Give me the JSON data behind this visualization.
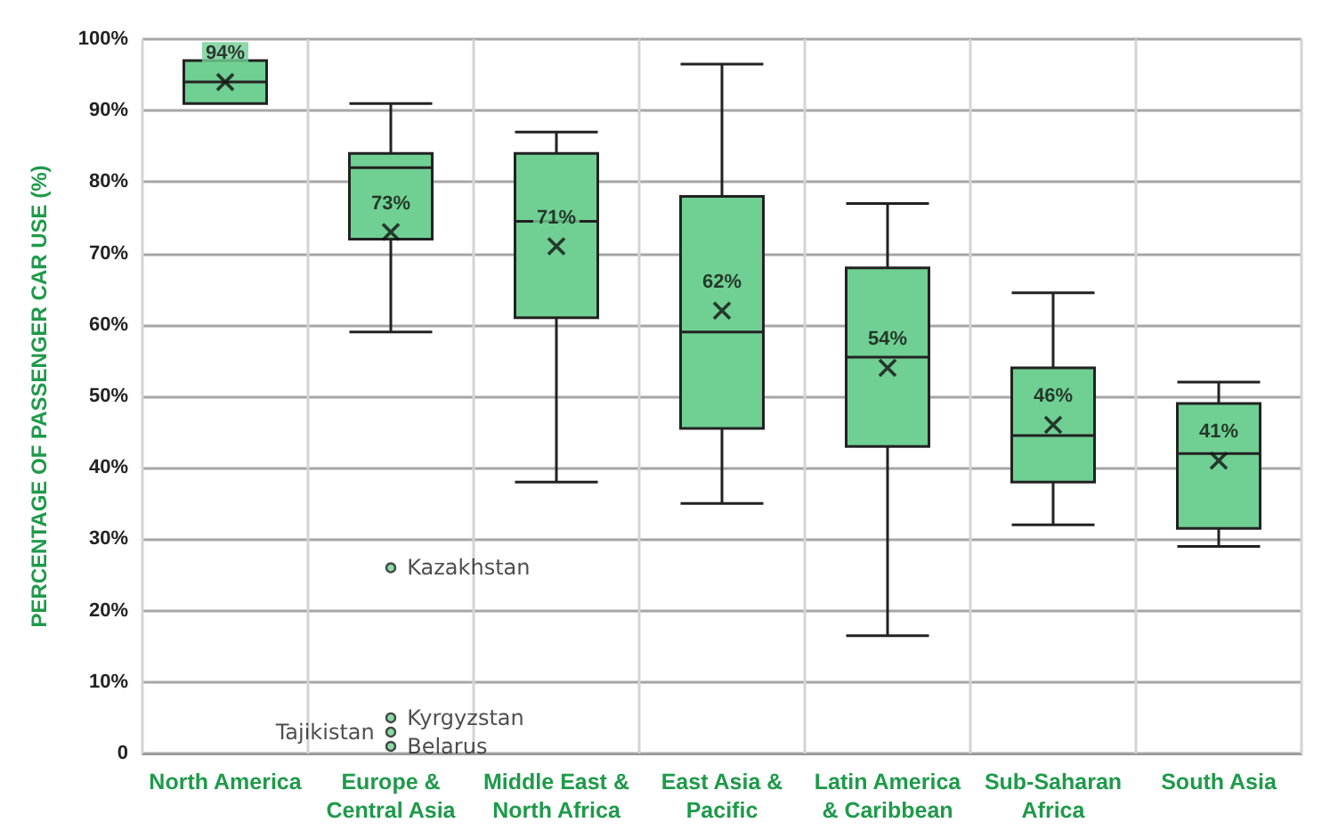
{
  "chart_data": {
    "type": "box",
    "ylabel": "PERCENTAGE OF PASSENGER CAR USE (%)",
    "categories": [
      "North America",
      "Europe &\nCentral Asia",
      "Middle East &\nNorth Africa",
      "East Asia &\nPacific",
      "Latin America\n& Caribbean",
      "Sub-Saharan\nAfrica",
      "South Asia"
    ],
    "series": [
      {
        "color": "#70cf93",
        "boxes": [
          {
            "low": 91,
            "q1": 91,
            "median": 94,
            "q3": 97,
            "high": 97,
            "mean": 94
          },
          {
            "low": 59,
            "q1": 72,
            "median": 82,
            "q3": 84,
            "high": 91,
            "mean": 73,
            "outliers": [
              26,
              5,
              3,
              1
            ]
          },
          {
            "low": 38,
            "q1": 61,
            "median": 74.5,
            "q3": 84,
            "high": 87,
            "mean": 71
          },
          {
            "low": 35,
            "q1": 45.5,
            "median": 59,
            "q3": 78,
            "high": 96.5,
            "mean": 62
          },
          {
            "low": 16.5,
            "q1": 43,
            "median": 55.5,
            "q3": 68,
            "high": 77,
            "mean": 54
          },
          {
            "low": 32,
            "q1": 38,
            "median": 44.5,
            "q3": 54,
            "high": 64.5,
            "mean": 46
          },
          {
            "low": 29,
            "q1": 31.5,
            "median": 42,
            "q3": 49,
            "high": 52,
            "mean": 41
          }
        ],
        "value_labels": [
          "94%",
          "73%",
          "71%",
          "62%",
          "54%",
          "46%",
          "41%"
        ]
      }
    ],
    "annotations": [
      "Kazakhstan",
      "Kyrgyzstan",
      "Tajikistan",
      "Belarus"
    ],
    "ylim": [
      0,
      100
    ],
    "yticks": [
      {
        "value": 0,
        "label": "0"
      },
      {
        "value": 10,
        "label": "10%"
      },
      {
        "value": 20,
        "label": "20%"
      },
      {
        "value": 30,
        "label": "30%"
      },
      {
        "value": 40,
        "label": "40%"
      },
      {
        "value": 50,
        "label": "50%"
      },
      {
        "value": 60,
        "label": "60%"
      },
      {
        "value": 70,
        "label": "70%"
      },
      {
        "value": 80,
        "label": "80%"
      },
      {
        "value": 90,
        "label": "90%"
      },
      {
        "value": 100,
        "label": "100%"
      }
    ],
    "grid": true,
    "marker": "cross"
  }
}
